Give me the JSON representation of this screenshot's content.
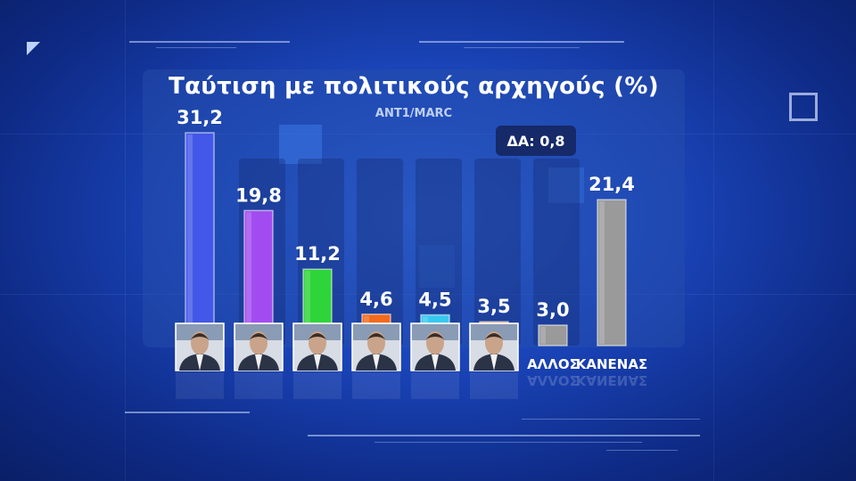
{
  "colors": {
    "bar_blue": "#4357e8",
    "bar_purple": "#a24cf0",
    "bar_green": "#2fd43a",
    "bar_orange": "#f26a1e",
    "bar_cyan": "#37c8ee",
    "bar_orange_light": "#f48d2c",
    "bar_gray": "#9a9a9a"
  },
  "chart_data": {
    "type": "bar",
    "title": "Ταύτιση με πολιτικούς αρχηγούς (%)",
    "subtitle": "ANT1/MARC",
    "annotation": "ΔΑ: 0,8",
    "categories": [
      "",
      "",
      "",
      "",
      "",
      "",
      "ΑΛΛΟΣ",
      "ΚΑΝΕΝΑΣ"
    ],
    "values": [
      31.2,
      19.8,
      11.2,
      4.6,
      4.5,
      3.5,
      3.0,
      21.4
    ],
    "value_labels": [
      "31,2",
      "19,8",
      "11,2",
      "4,6",
      "4,5",
      "3,5",
      "3,0",
      "21,4"
    ],
    "bar_colors": [
      "#4357e8",
      "#a24cf0",
      "#2fd43a",
      "#f26a1e",
      "#37c8ee",
      "#f48d2c",
      "#9a9a9a",
      "#9a9a9a"
    ],
    "photo_icons": [
      "person-photo-icon",
      "person-photo-icon",
      "person-photo-icon",
      "person-photo-icon",
      "person-photo-icon",
      "person-photo-icon"
    ],
    "ylim": [
      0,
      35
    ],
    "grid": false,
    "legend": "none"
  }
}
